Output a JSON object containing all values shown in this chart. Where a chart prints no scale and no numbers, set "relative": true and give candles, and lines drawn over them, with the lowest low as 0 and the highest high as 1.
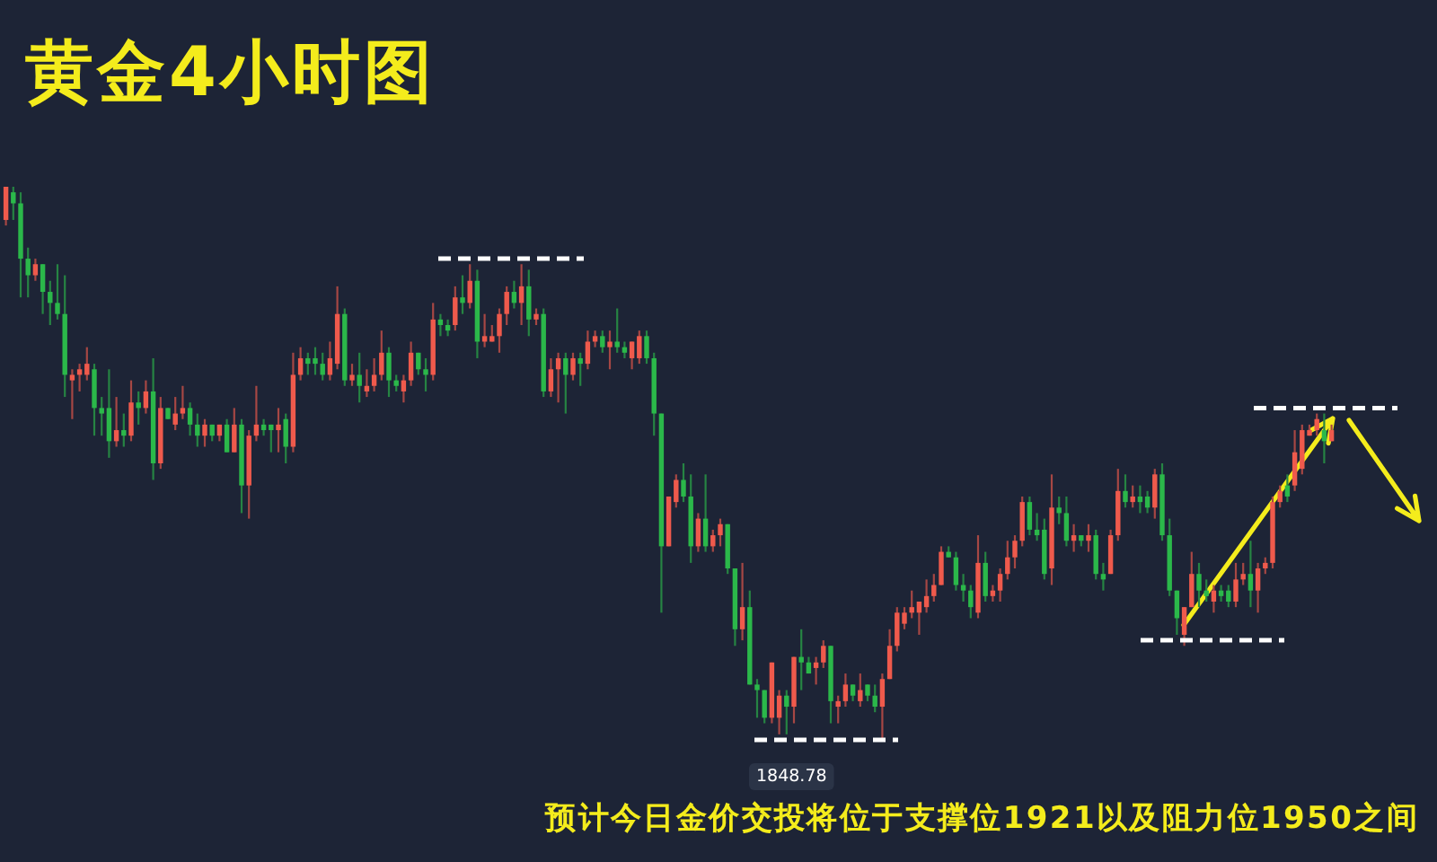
{
  "chart_data": {
    "type": "candlestick",
    "title": "黄金4小时图",
    "relative": true,
    "tick_labels": false,
    "annotations": [
      "1848.78",
      "预计今日金价交投将位于支撑位1921以及阻力位1950之间"
    ],
    "ref_lines": [
      {
        "axis": "y",
        "value": 0.87,
        "color": "#ffffff",
        "line_style": "dashed"
      },
      {
        "axis": "y",
        "value": 0,
        "color": "#ffffff",
        "line_style": "dashed"
      },
      {
        "axis": "y",
        "value": 0.18,
        "color": "#ffffff",
        "line_style": "dashed"
      },
      {
        "axis": "y",
        "value": 0.6,
        "color": "#ffffff",
        "line_style": "dashed"
      }
    ],
    "categories": [
      null,
      null,
      null,
      null,
      null,
      null,
      null,
      null,
      null,
      null,
      null,
      null,
      null,
      null,
      null,
      null,
      null,
      null,
      null,
      null,
      null,
      null,
      null,
      null,
      null,
      null,
      null,
      null,
      null,
      null,
      null,
      null,
      null,
      null,
      null,
      null,
      null,
      null,
      null,
      null,
      null,
      null,
      null,
      null,
      null,
      null,
      null,
      null,
      null,
      null,
      null,
      null,
      null,
      null,
      null,
      null,
      null,
      null,
      null,
      null,
      null,
      null,
      null,
      null,
      null,
      null,
      null,
      null,
      null,
      null,
      null,
      null,
      null,
      null,
      null,
      null,
      null,
      null,
      null,
      null,
      null,
      null,
      null,
      null,
      null,
      null,
      null,
      null,
      null,
      null,
      null,
      null,
      null,
      null,
      null,
      null,
      null,
      null,
      null,
      null,
      null,
      null,
      null,
      null,
      null,
      null,
      null,
      null,
      null,
      null,
      null,
      null,
      null,
      null,
      null,
      null,
      null,
      null,
      null,
      null,
      null,
      null,
      null,
      null,
      null,
      null,
      null,
      null,
      null,
      null,
      null,
      null,
      null,
      null,
      null,
      null,
      null,
      null,
      null,
      null,
      null,
      null,
      null,
      null,
      null,
      null,
      null,
      null,
      null,
      null,
      null,
      null,
      null,
      null,
      null,
      null,
      null,
      null,
      null,
      null,
      null,
      null,
      null,
      null,
      null,
      null,
      null,
      null,
      null,
      null,
      null,
      null,
      null,
      null,
      null,
      null,
      null,
      null,
      null,
      null,
      null,
      null,
      null,
      null,
      null,
      null,
      null,
      null,
      null,
      null,
      null,
      null,
      null,
      null
    ],
    "ohlc": [
      [
        0.94,
        1,
        0.93,
        1
      ],
      [
        0.99,
        1,
        0.94,
        0.97
      ],
      [
        0.97,
        0.99,
        0.8,
        0.87
      ],
      [
        0.87,
        0.89,
        0.8,
        0.84
      ],
      [
        0.84,
        0.87,
        0.83,
        0.86
      ],
      [
        0.86,
        0.86,
        0.77,
        0.81
      ],
      [
        0.81,
        0.83,
        0.75,
        0.79
      ],
      [
        0.79,
        0.86,
        0.76,
        0.77
      ],
      [
        0.77,
        0.84,
        0.62,
        0.66
      ],
      [
        0.65,
        0.67,
        0.58,
        0.66
      ],
      [
        0.66,
        0.68,
        0.63,
        0.67
      ],
      [
        0.66,
        0.71,
        0.65,
        0.68
      ],
      [
        0.67,
        0.68,
        0.55,
        0.6
      ],
      [
        0.6,
        0.62,
        0.55,
        0.59
      ],
      [
        0.6,
        0.67,
        0.51,
        0.54
      ],
      [
        0.54,
        0.62,
        0.53,
        0.56
      ],
      [
        0.56,
        0.59,
        0.53,
        0.55
      ],
      [
        0.55,
        0.65,
        0.54,
        0.61
      ],
      [
        0.61,
        0.63,
        0.57,
        0.6
      ],
      [
        0.6,
        0.65,
        0.59,
        0.63
      ],
      [
        0.63,
        0.69,
        0.47,
        0.5
      ],
      [
        0.5,
        0.62,
        0.49,
        0.6
      ],
      [
        0.6,
        0.6,
        0.58,
        0.58
      ],
      [
        0.57,
        0.62,
        0.56,
        0.59
      ],
      [
        0.59,
        0.64,
        0.58,
        0.6
      ],
      [
        0.6,
        0.61,
        0.55,
        0.57
      ],
      [
        0.57,
        0.59,
        0.53,
        0.55
      ],
      [
        0.55,
        0.58,
        0.53,
        0.57
      ],
      [
        0.57,
        0.57,
        0.54,
        0.55
      ],
      [
        0.55,
        0.57,
        0.54,
        0.57
      ],
      [
        0.57,
        0.58,
        0.52,
        0.52
      ],
      [
        0.52,
        0.6,
        0.52,
        0.57
      ],
      [
        0.57,
        0.58,
        0.41,
        0.46
      ],
      [
        0.46,
        0.56,
        0.4,
        0.55
      ],
      [
        0.55,
        0.64,
        0.54,
        0.57
      ],
      [
        0.57,
        0.58,
        0.55,
        0.56
      ],
      [
        0.57,
        0.57,
        0.52,
        0.56
      ],
      [
        0.56,
        0.6,
        0.52,
        0.57
      ],
      [
        0.58,
        0.59,
        0.5,
        0.53
      ],
      [
        0.53,
        0.7,
        0.52,
        0.66
      ],
      [
        0.66,
        0.71,
        0.65,
        0.69
      ],
      [
        0.69,
        0.7,
        0.66,
        0.68
      ],
      [
        0.69,
        0.71,
        0.66,
        0.68
      ],
      [
        0.68,
        0.7,
        0.65,
        0.66
      ],
      [
        0.66,
        0.72,
        0.65,
        0.69
      ],
      [
        0.68,
        0.82,
        0.67,
        0.77
      ],
      [
        0.77,
        0.78,
        0.64,
        0.65
      ],
      [
        0.65,
        0.68,
        0.64,
        0.66
      ],
      [
        0.66,
        0.7,
        0.61,
        0.64
      ],
      [
        0.63,
        0.67,
        0.62,
        0.64
      ],
      [
        0.64,
        0.69,
        0.63,
        0.66
      ],
      [
        0.66,
        0.74,
        0.65,
        0.7
      ],
      [
        0.7,
        0.71,
        0.62,
        0.65
      ],
      [
        0.65,
        0.66,
        0.63,
        0.64
      ],
      [
        0.63,
        0.66,
        0.61,
        0.65
      ],
      [
        0.65,
        0.72,
        0.64,
        0.7
      ],
      [
        0.7,
        0.7,
        0.66,
        0.67
      ],
      [
        0.67,
        0.69,
        0.63,
        0.66
      ],
      [
        0.66,
        0.79,
        0.65,
        0.76
      ],
      [
        0.76,
        0.77,
        0.73,
        0.75
      ],
      [
        0.75,
        0.76,
        0.73,
        0.74
      ],
      [
        0.75,
        0.82,
        0.74,
        0.8
      ],
      [
        0.8,
        0.84,
        0.77,
        0.79
      ],
      [
        0.79,
        0.86,
        0.78,
        0.83
      ],
      [
        0.83,
        0.85,
        0.69,
        0.72
      ],
      [
        0.72,
        0.77,
        0.71,
        0.73
      ],
      [
        0.72,
        0.75,
        0.72,
        0.73
      ],
      [
        0.73,
        0.78,
        0.7,
        0.77
      ],
      [
        0.77,
        0.82,
        0.75,
        0.81
      ],
      [
        0.81,
        0.83,
        0.78,
        0.79
      ],
      [
        0.79,
        0.86,
        0.75,
        0.82
      ],
      [
        0.82,
        0.85,
        0.73,
        0.76
      ],
      [
        0.76,
        0.78,
        0.75,
        0.77
      ],
      [
        0.77,
        0.78,
        0.62,
        0.63
      ],
      [
        0.63,
        0.69,
        0.62,
        0.67
      ],
      [
        0.67,
        0.7,
        0.61,
        0.69
      ],
      [
        0.69,
        0.7,
        0.59,
        0.66
      ],
      [
        0.66,
        0.7,
        0.65,
        0.69
      ],
      [
        0.69,
        0.7,
        0.64,
        0.68
      ],
      [
        0.68,
        0.74,
        0.67,
        0.72
      ],
      [
        0.72,
        0.74,
        0.71,
        0.73
      ],
      [
        0.73,
        0.74,
        0.7,
        0.71
      ],
      [
        0.71,
        0.74,
        0.67,
        0.72
      ],
      [
        0.72,
        0.78,
        0.7,
        0.71
      ],
      [
        0.71,
        0.72,
        0.69,
        0.7
      ],
      [
        0.69,
        0.72,
        0.67,
        0.72
      ],
      [
        0.69,
        0.74,
        0.68,
        0.73
      ],
      [
        0.73,
        0.74,
        0.68,
        0.69
      ],
      [
        0.69,
        0.7,
        0.55,
        0.59
      ],
      [
        0.59,
        0.59,
        0.23,
        0.35
      ],
      [
        0.35,
        0.44,
        0.35,
        0.44
      ],
      [
        0.43,
        0.48,
        0.42,
        0.47
      ],
      [
        0.47,
        0.5,
        0.43,
        0.44
      ],
      [
        0.44,
        0.48,
        0.32,
        0.35
      ],
      [
        0.35,
        0.41,
        0.34,
        0.4
      ],
      [
        0.4,
        0.48,
        0.34,
        0.35
      ],
      [
        0.35,
        0.38,
        0.34,
        0.37
      ],
      [
        0.37,
        0.4,
        0.35,
        0.39
      ],
      [
        0.39,
        0.39,
        0.3,
        0.31
      ],
      [
        0.31,
        0.31,
        0.17,
        0.2
      ],
      [
        0.2,
        0.32,
        0.18,
        0.24
      ],
      [
        0.24,
        0.27,
        0.1,
        0.1
      ],
      [
        0.1,
        0.11,
        0.04,
        0.09
      ],
      [
        0.09,
        0.09,
        0.03,
        0.04
      ],
      [
        0.04,
        0.14,
        0.03,
        0.14
      ],
      [
        0.04,
        0.09,
        0.01,
        0.08
      ],
      [
        0.08,
        0.09,
        0.01,
        0.06
      ],
      [
        0.06,
        0.15,
        0.03,
        0.15
      ],
      [
        0.15,
        0.2,
        0.09,
        0.14
      ],
      [
        0.14,
        0.15,
        0.12,
        0.12
      ],
      [
        0.13,
        0.15,
        0.1,
        0.14
      ],
      [
        0.14,
        0.18,
        0.13,
        0.17
      ],
      [
        0.17,
        0.17,
        0.03,
        0.07
      ],
      [
        0.06,
        0.08,
        0.03,
        0.07
      ],
      [
        0.07,
        0.12,
        0.06,
        0.1
      ],
      [
        0.1,
        0.1,
        0.07,
        0.08
      ],
      [
        0.07,
        0.12,
        0.06,
        0.09
      ],
      [
        0.1,
        0.1,
        0.07,
        0.08
      ],
      [
        0.08,
        0.1,
        0.05,
        0.06
      ],
      [
        0.06,
        0.12,
        0,
        0.11
      ],
      [
        0.11,
        0.2,
        0.11,
        0.17
      ],
      [
        0.17,
        0.24,
        0.16,
        0.23
      ],
      [
        0.21,
        0.24,
        0.2,
        0.23
      ],
      [
        0.23,
        0.27,
        0.22,
        0.24
      ],
      [
        0.23,
        0.25,
        0.19,
        0.25
      ],
      [
        0.24,
        0.29,
        0.23,
        0.26
      ],
      [
        0.26,
        0.3,
        0.25,
        0.28
      ],
      [
        0.28,
        0.35,
        0.28,
        0.34
      ],
      [
        0.34,
        0.35,
        0.33,
        0.33
      ],
      [
        0.33,
        0.34,
        0.27,
        0.28
      ],
      [
        0.28,
        0.3,
        0.25,
        0.27
      ],
      [
        0.27,
        0.28,
        0.22,
        0.24
      ],
      [
        0.23,
        0.37,
        0.22,
        0.32
      ],
      [
        0.32,
        0.34,
        0.25,
        0.26
      ],
      [
        0.26,
        0.28,
        0.25,
        0.27
      ],
      [
        0.27,
        0.31,
        0.25,
        0.3
      ],
      [
        0.3,
        0.36,
        0.29,
        0.33
      ],
      [
        0.33,
        0.37,
        0.31,
        0.36
      ],
      [
        0.36,
        0.44,
        0.35,
        0.43
      ],
      [
        0.43,
        0.44,
        0.37,
        0.38
      ],
      [
        0.38,
        0.41,
        0.36,
        0.37
      ],
      [
        0.38,
        0.4,
        0.29,
        0.3
      ],
      [
        0.31,
        0.48,
        0.28,
        0.42
      ],
      [
        0.42,
        0.44,
        0.39,
        0.41
      ],
      [
        0.41,
        0.44,
        0.35,
        0.36
      ],
      [
        0.36,
        0.39,
        0.34,
        0.37
      ],
      [
        0.37,
        0.37,
        0.35,
        0.36
      ],
      [
        0.36,
        0.39,
        0.34,
        0.37
      ],
      [
        0.37,
        0.38,
        0.29,
        0.3
      ],
      [
        0.3,
        0.32,
        0.27,
        0.29
      ],
      [
        0.3,
        0.38,
        0.3,
        0.37
      ],
      [
        0.37,
        0.49,
        0.36,
        0.45
      ],
      [
        0.45,
        0.48,
        0.42,
        0.43
      ],
      [
        0.43,
        0.46,
        0.42,
        0.44
      ],
      [
        0.44,
        0.46,
        0.41,
        0.43
      ],
      [
        0.44,
        0.45,
        0.41,
        0.42
      ],
      [
        0.42,
        0.49,
        0.4,
        0.48
      ],
      [
        0.48,
        0.5,
        0.36,
        0.37
      ],
      [
        0.37,
        0.4,
        0.26,
        0.27
      ],
      [
        0.27,
        0.27,
        0.19,
        0.22
      ],
      [
        0.19,
        0.24,
        0.17,
        0.24
      ],
      [
        0.24,
        0.34,
        0.24,
        0.3
      ],
      [
        0.3,
        0.32,
        0.24,
        0.27
      ],
      [
        0.27,
        0.29,
        0.25,
        0.26
      ],
      [
        0.25,
        0.28,
        0.23,
        0.27
      ],
      [
        0.27,
        0.28,
        0.25,
        0.26
      ],
      [
        0.27,
        0.28,
        0.24,
        0.25
      ],
      [
        0.25,
        0.32,
        0.24,
        0.29
      ],
      [
        0.29,
        0.32,
        0.28,
        0.3
      ],
      [
        0.3,
        0.36,
        0.24,
        0.27
      ],
      [
        0.27,
        0.32,
        0.23,
        0.31
      ],
      [
        0.31,
        0.33,
        0.3,
        0.32
      ],
      [
        0.32,
        0.44,
        0.31,
        0.43
      ],
      [
        0.43,
        0.46,
        0.42,
        0.45
      ],
      [
        0.46,
        0.48,
        0.43,
        0.44
      ],
      [
        0.46,
        0.56,
        0.45,
        0.52
      ],
      [
        0.49,
        0.57,
        0.48,
        0.56
      ],
      [
        0.55,
        0.57,
        0.55,
        0.56
      ],
      [
        0.56,
        0.59,
        0.55,
        0.58
      ],
      [
        0.56,
        0.59,
        0.5,
        0.54
      ],
      [
        0.54,
        0.57,
        0.54,
        0.56
      ],
      null,
      null,
      null,
      null,
      null,
      null,
      null,
      null,
      null,
      null,
      null,
      null,
      null
    ],
    "colors": [
      "#ef5a4c",
      "#2bb84a",
      "#2bb84a",
      "#2bb84a",
      "#ef5a4c",
      "#2bb84a",
      "#2bb84a",
      "#2bb84a",
      "#2bb84a",
      "#ef5a4c",
      "#ef5a4c",
      "#ef5a4c",
      "#2bb84a",
      "#2bb84a",
      "#2bb84a",
      "#ef5a4c",
      "#2bb84a",
      "#ef5a4c",
      "#2bb84a",
      "#ef5a4c",
      "#2bb84a",
      "#ef5a4c",
      "#2bb84a",
      "#ef5a4c",
      "#ef5a4c",
      "#2bb84a",
      "#2bb84a",
      "#ef5a4c",
      "#2bb84a",
      "#ef5a4c",
      "#2bb84a",
      "#ef5a4c",
      "#2bb84a",
      "#ef5a4c",
      "#ef5a4c",
      "#2bb84a",
      "#2bb84a",
      "#ef5a4c",
      "#2bb84a",
      "#ef5a4c",
      "#ef5a4c",
      "#2bb84a",
      "#2bb84a",
      "#2bb84a",
      "#ef5a4c",
      "#ef5a4c",
      "#2bb84a",
      "#ef5a4c",
      "#2bb84a",
      "#ef5a4c",
      "#ef5a4c",
      "#ef5a4c",
      "#2bb84a",
      "#2bb84a",
      "#ef5a4c",
      "#ef5a4c",
      "#2bb84a",
      "#2bb84a",
      "#ef5a4c",
      "#2bb84a",
      "#2bb84a",
      "#ef5a4c",
      "#2bb84a",
      "#ef5a4c",
      "#2bb84a",
      "#ef5a4c",
      "#ef5a4c",
      "#ef5a4c",
      "#ef5a4c",
      "#2bb84a",
      "#ef5a4c",
      "#2bb84a",
      "#ef5a4c",
      "#2bb84a",
      "#ef5a4c",
      "#ef5a4c",
      "#2bb84a",
      "#ef5a4c",
      "#2bb84a",
      "#ef5a4c",
      "#ef5a4c",
      "#2bb84a",
      "#ef5a4c",
      "#2bb84a",
      "#2bb84a",
      "#ef5a4c",
      "#ef5a4c",
      "#2bb84a",
      "#2bb84a",
      "#2bb84a",
      "#ef5a4c",
      "#ef5a4c",
      "#2bb84a",
      "#2bb84a",
      "#ef5a4c",
      "#2bb84a",
      "#ef5a4c",
      "#ef5a4c",
      "#2bb84a",
      "#2bb84a",
      "#ef5a4c",
      "#2bb84a",
      "#2bb84a",
      "#2bb84a",
      "#ef5a4c",
      "#ef5a4c",
      "#2bb84a",
      "#ef5a4c",
      "#2bb84a",
      "#2bb84a",
      "#ef5a4c",
      "#ef5a4c",
      "#2bb84a",
      "#ef5a4c",
      "#ef5a4c",
      "#2bb84a",
      "#ef5a4c",
      "#2bb84a",
      "#2bb84a",
      "#ef5a4c",
      "#ef5a4c",
      "#ef5a4c",
      "#ef5a4c",
      "#ef5a4c",
      "#ef5a4c",
      "#ef5a4c",
      "#ef5a4c",
      "#ef5a4c",
      "#2bb84a",
      "#2bb84a",
      "#2bb84a",
      "#2bb84a",
      "#ef5a4c",
      "#2bb84a",
      "#ef5a4c",
      "#ef5a4c",
      "#ef5a4c",
      "#ef5a4c",
      "#ef5a4c",
      "#2bb84a",
      "#2bb84a",
      "#2bb84a",
      "#ef5a4c",
      "#2bb84a",
      "#2bb84a",
      "#ef5a4c",
      "#2bb84a",
      "#ef5a4c",
      "#2bb84a",
      "#2bb84a",
      "#ef5a4c",
      "#ef5a4c",
      "#2bb84a",
      "#ef5a4c",
      "#2bb84a",
      "#2bb84a",
      "#ef5a4c",
      "#2bb84a",
      "#2bb84a",
      "#2bb84a",
      "#ef5a4c",
      "#ef5a4c",
      "#2bb84a",
      "#2bb84a",
      "#ef5a4c",
      "#2bb84a",
      "#2bb84a",
      "#ef5a4c",
      "#ef5a4c",
      "#2bb84a",
      "#ef5a4c",
      "#ef5a4c",
      "#ef5a4c",
      "#ef5a4c",
      "#2bb84a",
      "#ef5a4c",
      "#ef5a4c",
      "#ef5a4c",
      "#ef5a4c",
      "#2bb84a",
      "#ef5a4c",
      null,
      null,
      null,
      null,
      null,
      null,
      null,
      null,
      null,
      null,
      null,
      null,
      null
    ]
  }
}
